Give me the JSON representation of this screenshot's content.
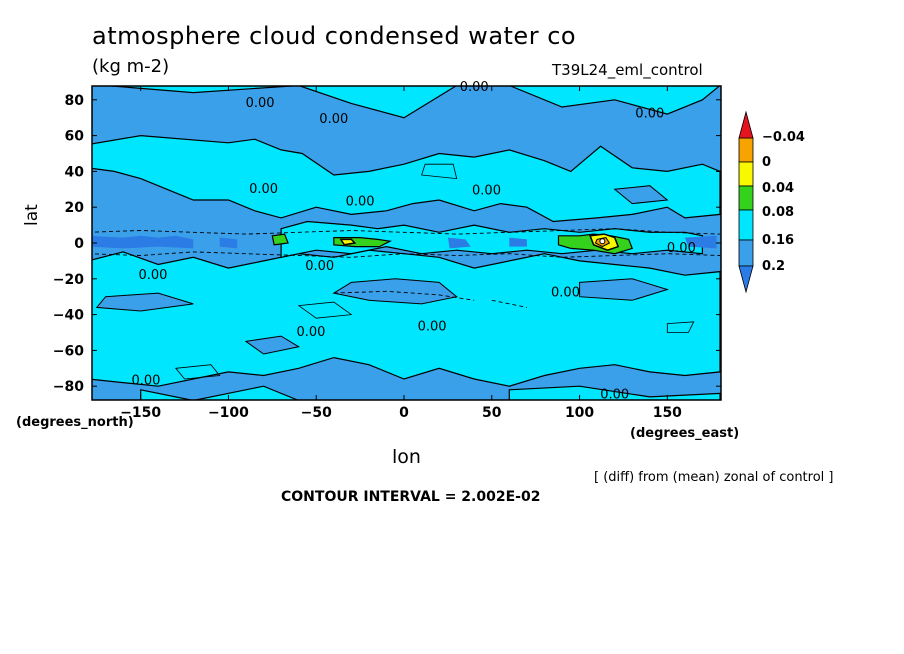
{
  "header": {
    "title": "atmosphere cloud condensed water co",
    "units": "(kg m-2)",
    "run_name": "T39L24_eml_control"
  },
  "axes": {
    "xlabel": "lon",
    "ylabel": "lat",
    "y_units": "(degrees_north)",
    "x_units": "(degrees_east)"
  },
  "footer": {
    "note": "[ (diff) from (mean) zonal of control ]",
    "contour_interval": "CONTOUR INTERVAL = 2.002E-02"
  },
  "colors": {
    "lt_m004": "#2c7ce6",
    "m004_0": "#3aa0ea",
    "0_004": "#00e6ff",
    "004_008": "#34d21c",
    "008_016": "#f8f800",
    "016_02": "#f8a400",
    "gt_02": "#e6141e"
  },
  "chart_data": {
    "type": "heatmap",
    "title": "atmosphere cloud condensed water co",
    "subtitle": "(kg m-2)",
    "xlabel": "lon",
    "ylabel": "lat",
    "xlim": [
      -180,
      180
    ],
    "ylim": [
      -88,
      88
    ],
    "xticks": [
      -150,
      -100,
      -50,
      0,
      50,
      100,
      150
    ],
    "yticks": [
      -80,
      -60,
      -40,
      -20,
      0,
      20,
      40,
      60,
      80
    ],
    "contour_interval": 0.02002,
    "colorbar": {
      "levels": [
        -0.04,
        0,
        0.04,
        0.08,
        0.16,
        0.2
      ],
      "labels": [
        "-0.04",
        "0",
        "0.04",
        "0.08",
        "0.16",
        "0.2"
      ]
    },
    "contour_labels": [
      {
        "text": "0.00",
        "lon": -82,
        "lat": 76
      },
      {
        "text": "0.00",
        "lon": 40,
        "lat": 85
      },
      {
        "text": "0.00",
        "lon": -40,
        "lat": 67
      },
      {
        "text": "0.00",
        "lon": 140,
        "lat": 70
      },
      {
        "text": "0.00",
        "lon": -80,
        "lat": 28
      },
      {
        "text": "0.00",
        "lon": -25,
        "lat": 21
      },
      {
        "text": "0.00",
        "lon": 47,
        "lat": 27
      },
      {
        "text": "0.00",
        "lon": -143,
        "lat": -20
      },
      {
        "text": "0.00",
        "lon": -48,
        "lat": -15
      },
      {
        "text": "0.00",
        "lon": 92,
        "lat": -30
      },
      {
        "text": "0.00",
        "lon": 158,
        "lat": -5
      },
      {
        "text": "0.00",
        "lon": -53,
        "lat": -52
      },
      {
        "text": "0.00",
        "lon": 16,
        "lat": -49
      },
      {
        "text": "0.00",
        "lon": -147,
        "lat": -79
      },
      {
        "text": "0.00",
        "lon": 120,
        "lat": -87
      }
    ]
  }
}
